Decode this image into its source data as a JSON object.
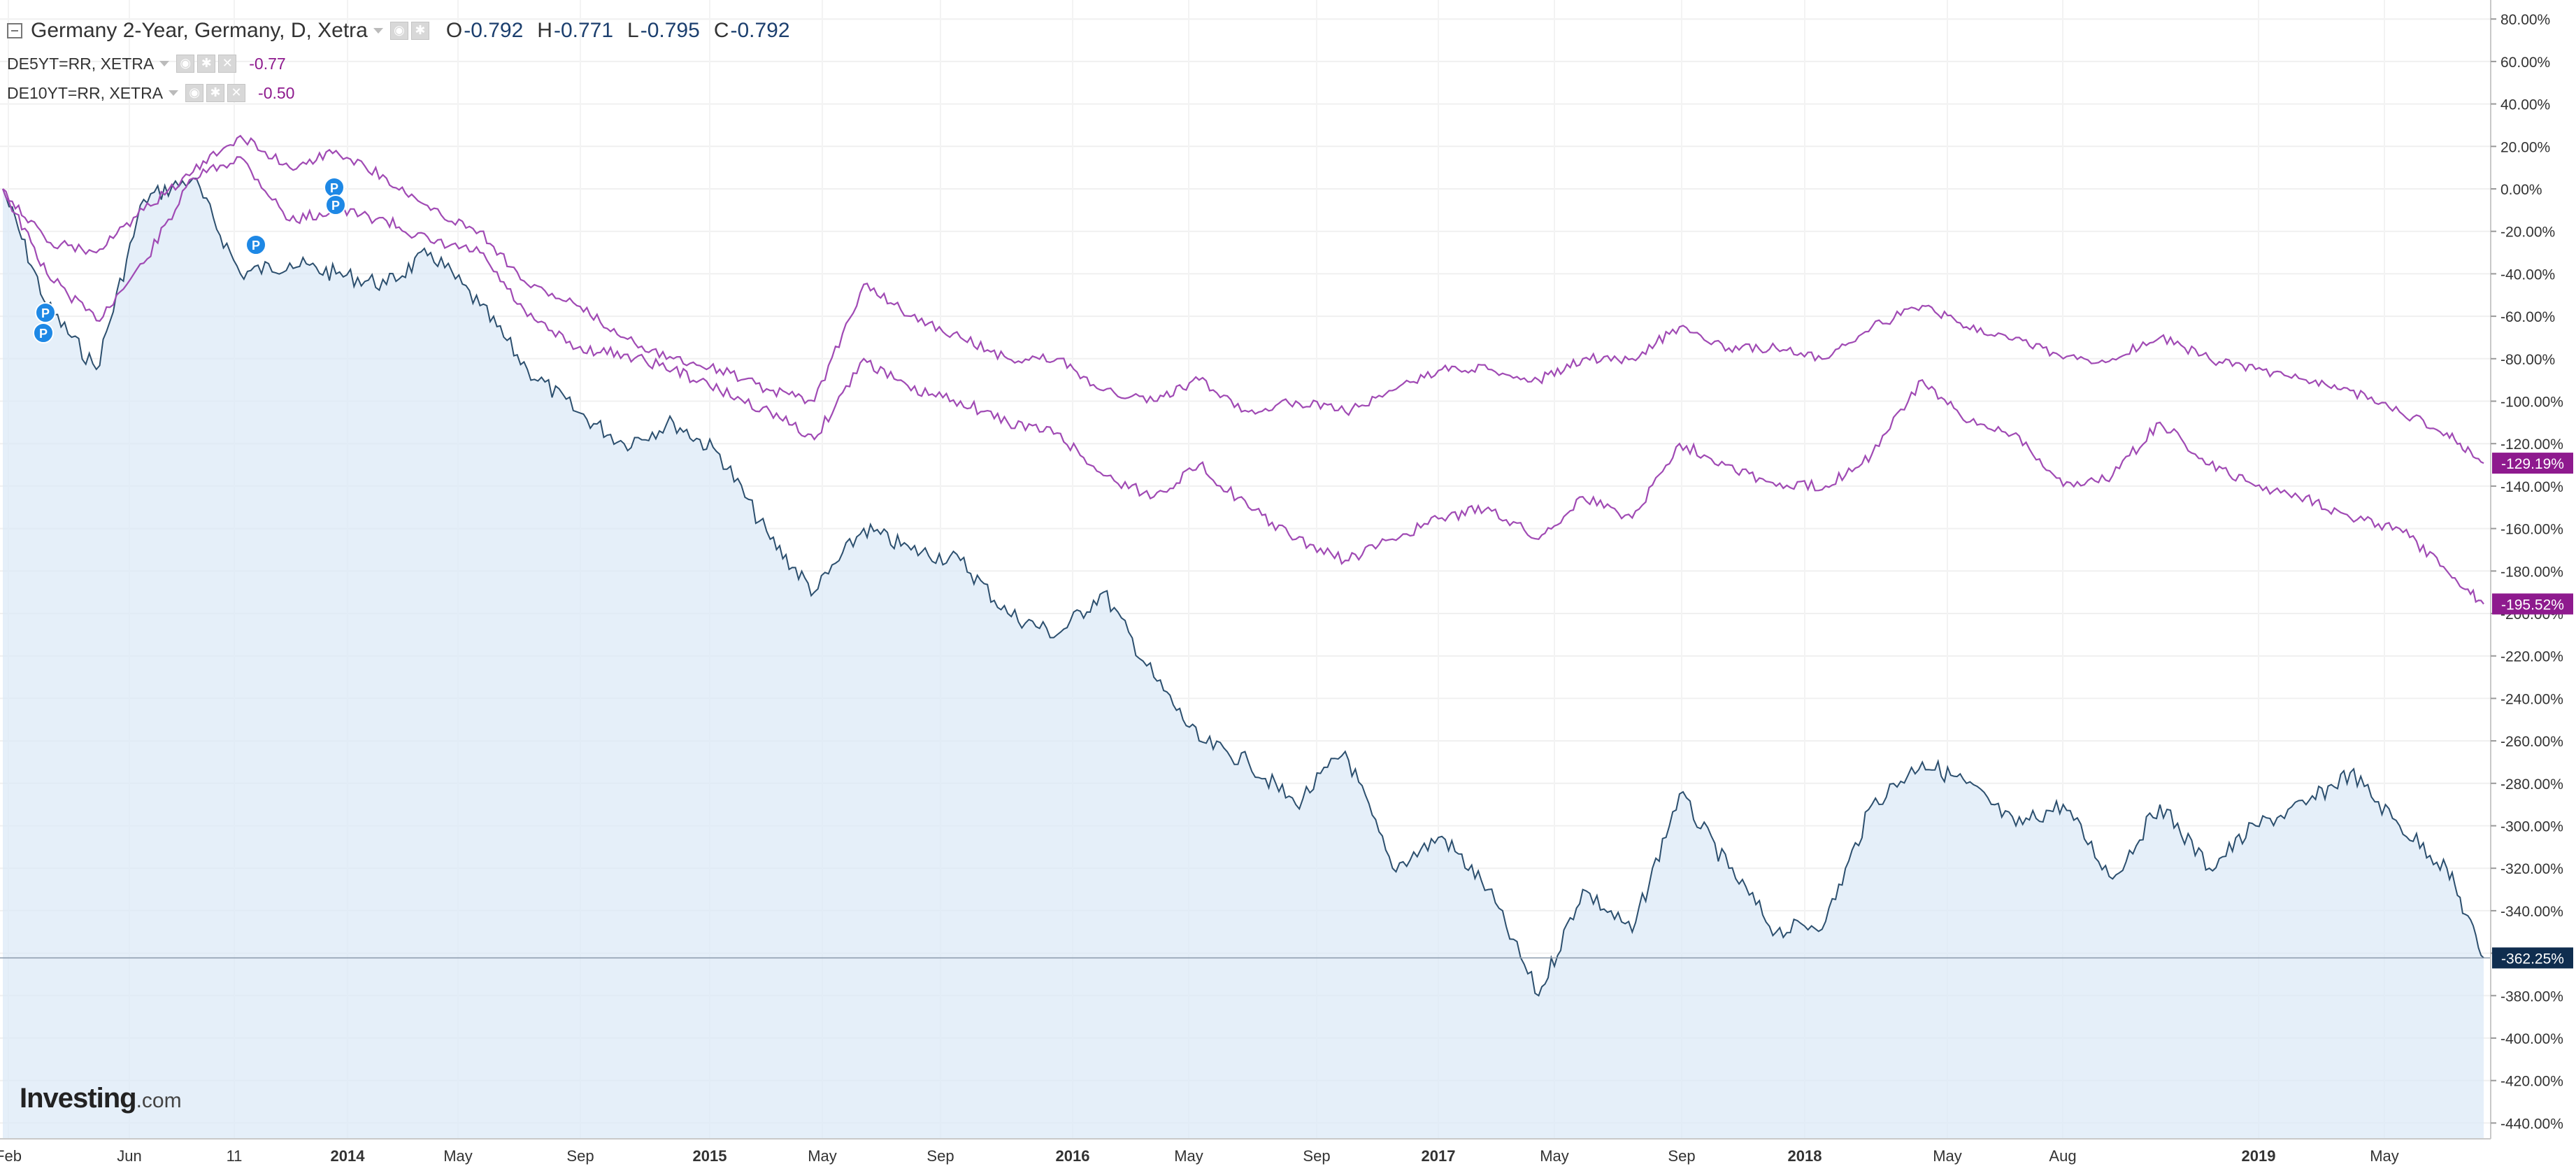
{
  "header": {
    "title": "Germany 2-Year, Germany, D, Xetra",
    "ohlc": [
      {
        "label": "O",
        "value": "-0.792"
      },
      {
        "label": "H",
        "value": "-0.771"
      },
      {
        "label": "L",
        "value": "-0.795"
      },
      {
        "label": "C",
        "value": "-0.792"
      }
    ]
  },
  "overlays": [
    {
      "name": "DE5YT=RR, XETRA",
      "value": "-0.77",
      "color": "#8e1a8e"
    },
    {
      "name": "DE10YT=RR, XETRA",
      "value": "-0.50",
      "color": "#8e1a8e"
    }
  ],
  "logo": {
    "brand": "Investing",
    "suffix": ".com"
  },
  "colors": {
    "main_line": "#2c4f6e",
    "main_fill": "#dce9f7",
    "overlay_line": "#a04ab4",
    "price_tag_main": "#0f2d4f",
    "price_tag_overlay": "#8e1a8e",
    "marker": "#1e88e5"
  },
  "chart_data": {
    "type": "area",
    "ylim": [
      -450,
      85
    ],
    "y_ticks": [
      "80.00%",
      "60.00%",
      "40.00%",
      "20.00%",
      "0.00%",
      "-20.00%",
      "-40.00%",
      "-60.00%",
      "-80.00%",
      "-100.00%",
      "-120.00%",
      "-140.00%",
      "-160.00%",
      "-180.00%",
      "-200.00%",
      "-220.00%",
      "-240.00%",
      "-260.00%",
      "-280.00%",
      "-300.00%",
      "-320.00%",
      "-340.00%",
      "-360.00%",
      "-380.00%",
      "-400.00%",
      "-420.00%",
      "-440.00%"
    ],
    "x_ticks": [
      {
        "label": "Feb",
        "bold": false
      },
      {
        "label": "Jun",
        "bold": false
      },
      {
        "label": "11",
        "bold": false
      },
      {
        "label": "2014",
        "bold": true
      },
      {
        "label": "May",
        "bold": false
      },
      {
        "label": "Sep",
        "bold": false
      },
      {
        "label": "2015",
        "bold": true
      },
      {
        "label": "May",
        "bold": false
      },
      {
        "label": "Sep",
        "bold": false
      },
      {
        "label": "2016",
        "bold": true
      },
      {
        "label": "May",
        "bold": false
      },
      {
        "label": "Sep",
        "bold": false
      },
      {
        "label": "2017",
        "bold": true
      },
      {
        "label": "May",
        "bold": false
      },
      {
        "label": "Sep",
        "bold": false
      },
      {
        "label": "2018",
        "bold": true
      },
      {
        "label": "May",
        "bold": false
      },
      {
        "label": "Aug",
        "bold": false
      },
      {
        "label": "2019",
        "bold": true
      },
      {
        "label": "May",
        "bold": false
      }
    ],
    "x": [
      "2013-02-01",
      "2013-03-15",
      "2013-05-01",
      "2013-06-15",
      "2013-08-01",
      "2013-09-15",
      "2013-11-01",
      "2013-12-15",
      "2014-02-01",
      "2014-03-15",
      "2014-05-01",
      "2014-06-15",
      "2014-08-01",
      "2014-09-15",
      "2014-11-01",
      "2014-12-15",
      "2015-02-01",
      "2015-03-15",
      "2015-05-01",
      "2015-06-15",
      "2015-08-01",
      "2015-09-15",
      "2015-11-01",
      "2015-12-15",
      "2016-02-01",
      "2016-03-15",
      "2016-05-01",
      "2016-06-15",
      "2016-08-01",
      "2016-09-15",
      "2016-11-01",
      "2016-12-15",
      "2017-02-01",
      "2017-03-15",
      "2017-05-01",
      "2017-06-15",
      "2017-08-01",
      "2017-09-15",
      "2017-11-01",
      "2017-12-15",
      "2018-02-01",
      "2018-03-15",
      "2018-05-01",
      "2018-06-15",
      "2018-08-01",
      "2018-09-15",
      "2018-11-01",
      "2018-12-15",
      "2019-02-01",
      "2019-03-15",
      "2019-05-01",
      "2019-06-15",
      "2019-07-20"
    ],
    "series": [
      {
        "name": "Germany 2-Year",
        "values": [
          0,
          -55,
          -85,
          -5,
          5,
          -40,
          -35,
          -40,
          -45,
          -30,
          -55,
          -85,
          -105,
          -120,
          -110,
          -125,
          -165,
          -190,
          -160,
          -170,
          -175,
          -200,
          -210,
          -190,
          -230,
          -260,
          -270,
          -290,
          -265,
          -320,
          -305,
          -330,
          -380,
          -330,
          -350,
          -285,
          -320,
          -350,
          -345,
          -290,
          -270,
          -280,
          -300,
          -290,
          -325,
          -290,
          -320,
          -300,
          -290,
          -275,
          -300,
          -320,
          -362.25
        ]
      },
      {
        "name": "DE5YT=RR, XETRA",
        "values": [
          0,
          -40,
          -62,
          -35,
          5,
          15,
          -15,
          -10,
          -15,
          -25,
          -30,
          -60,
          -75,
          -78,
          -85,
          -95,
          -105,
          -118,
          -80,
          -95,
          -100,
          -110,
          -115,
          -135,
          -145,
          -130,
          -150,
          -165,
          -175,
          -165,
          -155,
          -150,
          -165,
          -145,
          -155,
          -120,
          -130,
          -140,
          -140,
          -125,
          -90,
          -110,
          -115,
          -140,
          -135,
          -110,
          -130,
          -140,
          -145,
          -155,
          -160,
          -180,
          -195.52
        ]
      },
      {
        "name": "DE10YT=RR, XETRA",
        "values": [
          0,
          -25,
          -30,
          -10,
          8,
          25,
          10,
          18,
          5,
          -10,
          -20,
          -45,
          -55,
          -70,
          -80,
          -85,
          -95,
          -100,
          -45,
          -60,
          -70,
          -80,
          -80,
          -95,
          -100,
          -90,
          -105,
          -100,
          -105,
          -95,
          -85,
          -85,
          -90,
          -80,
          -80,
          -65,
          -75,
          -75,
          -80,
          -65,
          -55,
          -65,
          -70,
          -80,
          -80,
          -70,
          -80,
          -85,
          -90,
          -95,
          -105,
          -115,
          -129.19
        ]
      }
    ],
    "last_values": [
      "-362.25%",
      "-195.52%",
      "-129.19%"
    ],
    "markers": [
      "P",
      "P",
      "P",
      "P",
      "P"
    ]
  }
}
